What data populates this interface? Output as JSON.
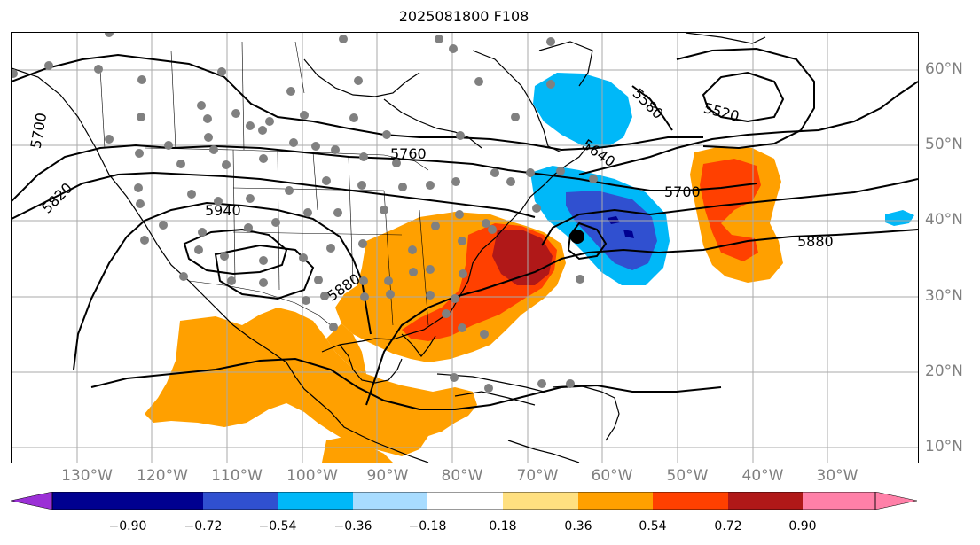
{
  "title": "2025081800 F108",
  "longitude_labels": [
    "130°W",
    "120°W",
    "110°W",
    "100°W",
    "90°W",
    "80°W",
    "70°W",
    "60°W",
    "50°W",
    "40°W",
    "30°W"
  ],
  "latitude_labels": [
    "60°N",
    "50°N",
    "40°N",
    "30°N",
    "20°N",
    "10°N"
  ],
  "contour_labels": [
    "5700",
    "5820",
    "5940",
    "5760",
    "5880",
    "5580",
    "5520",
    "5640",
    "5700",
    "5880"
  ],
  "colorbar": {
    "ticks": [
      "−0.90",
      "−0.72",
      "−0.54",
      "−0.36",
      "−0.18",
      "0.18",
      "0.36",
      "0.54",
      "0.72",
      "0.90"
    ],
    "colors": [
      "#9b30d6",
      "#000090",
      "#3050d0",
      "#00b8f8",
      "#a8dcff",
      "#ffffff",
      "#ffe080",
      "#ffa000",
      "#ff4000",
      "#b01818",
      "#ff80a8"
    ]
  },
  "colors": {
    "anomaly_orange": "#ffa000",
    "anomaly_redorange": "#ff4000",
    "anomaly_darkred": "#b01818",
    "anomaly_blue": "#00b8f8",
    "anomaly_mid_blue": "#3050d0",
    "anomaly_dark_blue": "#000090",
    "station_dot": "#808080",
    "grid": "#aaaaaa"
  }
}
